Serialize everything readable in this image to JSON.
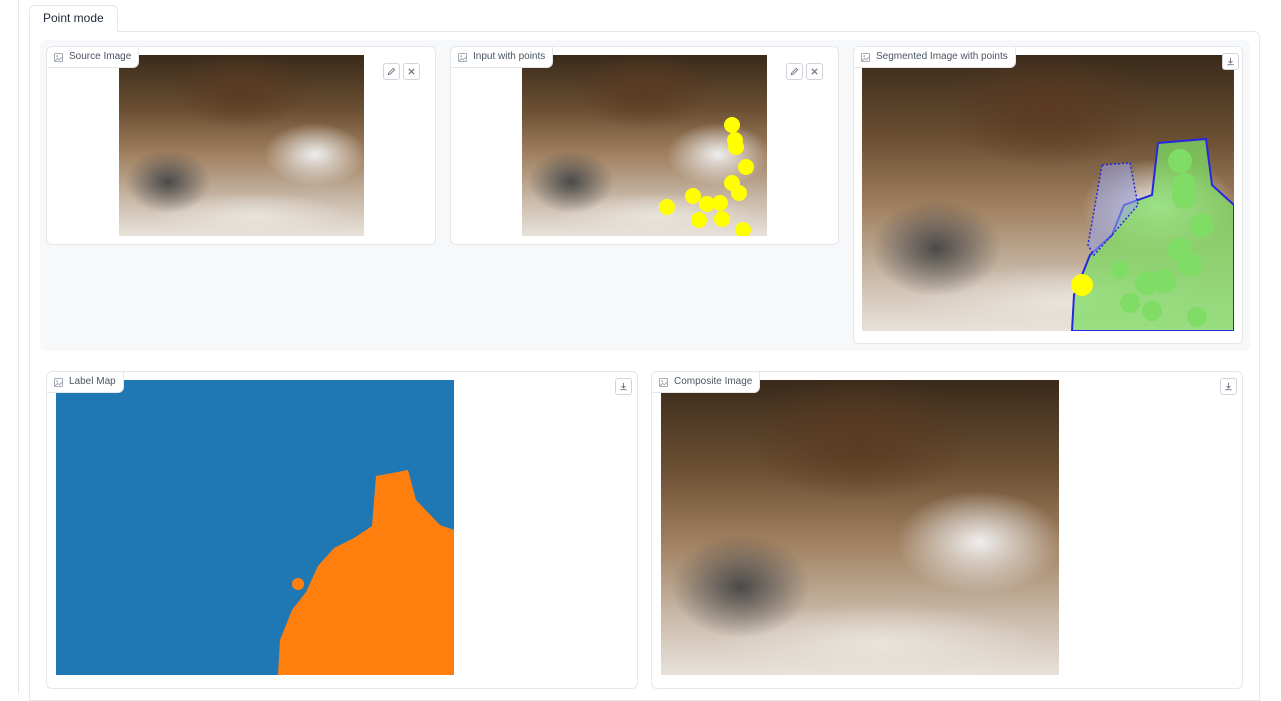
{
  "tabs": [
    {
      "label": "Point mode"
    }
  ],
  "cards": {
    "source": {
      "label": "Source Image"
    },
    "input": {
      "label": "Input with points"
    },
    "segmented": {
      "label": "Segmented Image with points"
    },
    "labelmap": {
      "label": "Label Map"
    },
    "composite": {
      "label": "Composite Image"
    }
  },
  "icons": {
    "image": "image-icon",
    "edit": "pencil-icon",
    "clear": "close-icon",
    "download": "download-icon"
  },
  "colors": {
    "point": "#ffff00",
    "mask_fill": "#7fdc64",
    "mask_outline": "#2727e0",
    "label_background": "#1f77b4",
    "label_foreground": "#ff7f0e"
  }
}
